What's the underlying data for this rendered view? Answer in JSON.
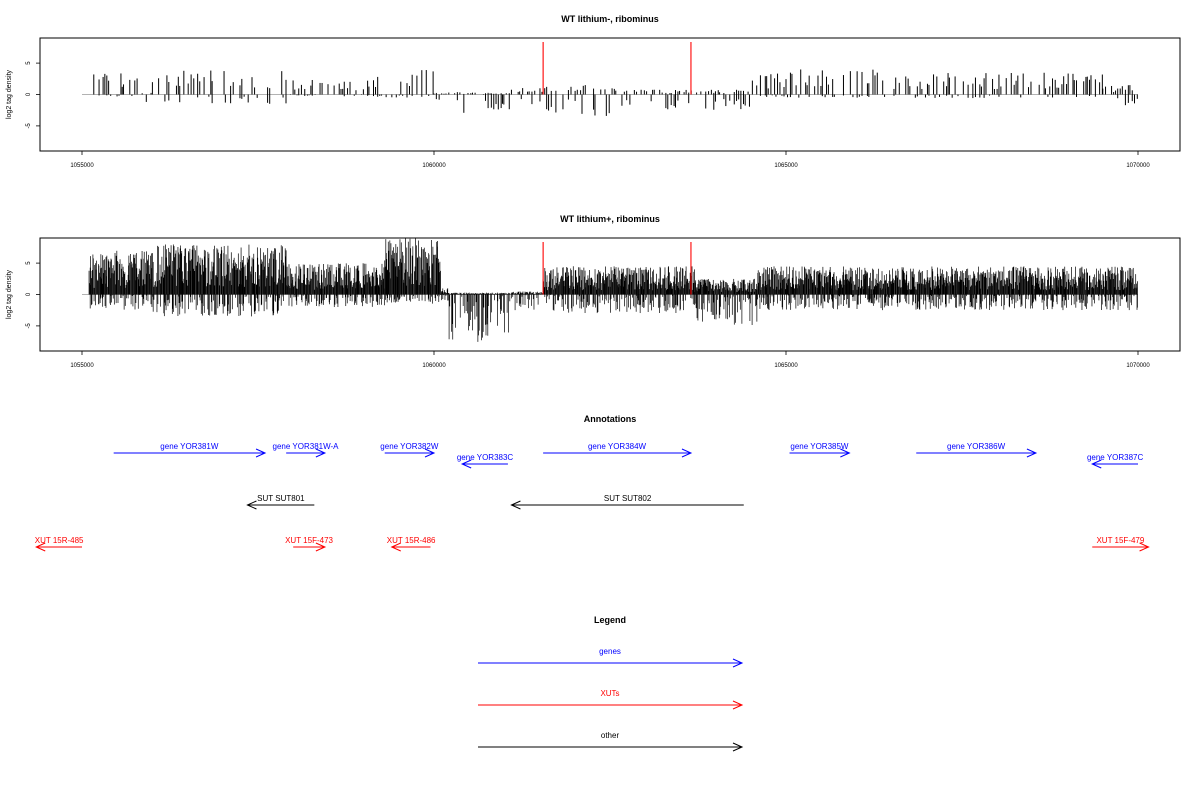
{
  "colors": {
    "gene": "#0000ff",
    "xut": "#ff0000",
    "other": "#000000",
    "marker": "#ff0000",
    "baseline": "#999999"
  },
  "chart_data": [
    {
      "type": "bar",
      "title": "WT lithium-, ribominus",
      "ylabel": "log2 tag density",
      "xlim": [
        1055000,
        1070000
      ],
      "ylim": [
        -9,
        9
      ],
      "x_ticks": [
        1055000,
        1060000,
        1065000,
        1070000
      ],
      "y_ticks": [
        -5,
        0,
        5
      ],
      "markers": [
        1061550,
        1063650
      ],
      "density": "sparse",
      "segments": [
        {
          "from": 1055100,
          "to": 1055800,
          "top": 3.5,
          "bottom": -0.4
        },
        {
          "from": 1055800,
          "to": 1056000,
          "top": 0.3,
          "bottom": -3
        },
        {
          "from": 1056000,
          "to": 1057900,
          "top": 4,
          "bottom": -1.5
        },
        {
          "from": 1057900,
          "to": 1059200,
          "top": 2.5,
          "bottom": -0.3
        },
        {
          "from": 1059200,
          "to": 1060000,
          "top": 4,
          "bottom": -0.5
        },
        {
          "from": 1060000,
          "to": 1060400,
          "top": 0.4,
          "bottom": -1
        },
        {
          "from": 1060400,
          "to": 1061100,
          "top": 0.3,
          "bottom": -3.5
        },
        {
          "from": 1061100,
          "to": 1062600,
          "top": 1.5,
          "bottom": -3.5
        },
        {
          "from": 1062600,
          "to": 1064500,
          "top": 0.8,
          "bottom": -2.5
        },
        {
          "from": 1064500,
          "to": 1065000,
          "top": 3.5,
          "bottom": -0.6
        },
        {
          "from": 1065000,
          "to": 1066400,
          "top": 4,
          "bottom": -0.5
        },
        {
          "from": 1066400,
          "to": 1069500,
          "top": 3.5,
          "bottom": -0.6
        },
        {
          "from": 1069500,
          "to": 1070000,
          "top": 1.5,
          "bottom": -2
        }
      ]
    },
    {
      "type": "bar",
      "title": "WT lithium+, ribominus",
      "ylabel": "log2 tag density",
      "xlim": [
        1055000,
        1070000
      ],
      "ylim": [
        -9,
        9
      ],
      "x_ticks": [
        1055000,
        1060000,
        1065000,
        1070000
      ],
      "y_ticks": [
        -5,
        0,
        5
      ],
      "markers": [
        1061550,
        1063650
      ],
      "density": "dense",
      "segments": [
        {
          "from": 1055100,
          "to": 1056000,
          "top": 7,
          "bottom": -2.5
        },
        {
          "from": 1056000,
          "to": 1057900,
          "top": 8,
          "bottom": -3.5
        },
        {
          "from": 1057900,
          "to": 1059300,
          "top": 5,
          "bottom": -2
        },
        {
          "from": 1059300,
          "to": 1060100,
          "top": 9,
          "bottom": -1.5
        },
        {
          "from": 1060100,
          "to": 1060200,
          "top": 1,
          "bottom": -1
        },
        {
          "from": 1060200,
          "to": 1061100,
          "top": 0.3,
          "bottom": -8
        },
        {
          "from": 1061100,
          "to": 1061550,
          "top": 0.5,
          "bottom": -2.5
        },
        {
          "from": 1061550,
          "to": 1063700,
          "top": 4.5,
          "bottom": -3
        },
        {
          "from": 1063700,
          "to": 1064600,
          "top": 2.5,
          "bottom": -5
        },
        {
          "from": 1064600,
          "to": 1070000,
          "top": 4.5,
          "bottom": -2.5
        }
      ]
    },
    {
      "type": "annotation-track",
      "title": "Annotations",
      "features": [
        {
          "label": "gene YOR381W",
          "class": "gene",
          "from": 1055450,
          "to": 1057600,
          "row": 0
        },
        {
          "label": "gene YOR381W-A",
          "class": "gene",
          "from": 1057900,
          "to": 1058450,
          "row": 0
        },
        {
          "label": "gene YOR382W",
          "class": "gene",
          "from": 1059300,
          "to": 1060000,
          "row": 0
        },
        {
          "label": "gene YOR383C",
          "class": "gene",
          "from": 1061050,
          "to": 1060400,
          "row": 1
        },
        {
          "label": "gene YOR384W",
          "class": "gene",
          "from": 1061550,
          "to": 1063650,
          "row": 0
        },
        {
          "label": "gene YOR385W",
          "class": "gene",
          "from": 1065050,
          "to": 1065900,
          "row": 0
        },
        {
          "label": "gene YOR386W",
          "class": "gene",
          "from": 1066850,
          "to": 1068550,
          "row": 0
        },
        {
          "label": "gene YOR387C",
          "class": "gene",
          "from": 1070000,
          "to": 1069350,
          "row": 1
        },
        {
          "label": "SUT SUT801",
          "class": "other",
          "from": 1058300,
          "to": 1057350,
          "row": 2
        },
        {
          "label": "SUT SUT802",
          "class": "other",
          "from": 1064400,
          "to": 1061100,
          "row": 2
        },
        {
          "label": "XUT 15R-485",
          "class": "xut",
          "from": 1055000,
          "to": 1054350,
          "row": 3
        },
        {
          "label": "XUT 15F-473",
          "class": "xut",
          "from": 1058000,
          "to": 1058450,
          "row": 3
        },
        {
          "label": "XUT 15R-486",
          "class": "xut",
          "from": 1059950,
          "to": 1059400,
          "row": 3
        },
        {
          "label": "XUT 15F-479",
          "class": "xut",
          "from": 1069350,
          "to": 1070150,
          "row": 3
        }
      ]
    }
  ],
  "legend": {
    "title": "Legend",
    "items": [
      {
        "label": "genes",
        "class": "gene"
      },
      {
        "label": "XUTs",
        "class": "xut"
      },
      {
        "label": "other",
        "class": "other"
      }
    ]
  }
}
